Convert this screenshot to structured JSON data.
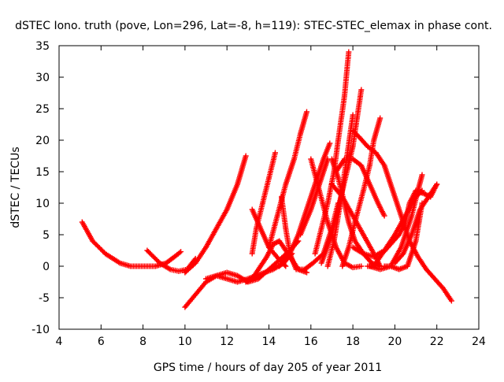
{
  "chart_data": {
    "type": "scatter",
    "title": "dSTEC Iono. truth (pove, Lon=296, Lat=-8, h=119): STEC-STEC_elemax in phase cont.",
    "xlabel": "GPS time / hours of day 205 of year 2011",
    "ylabel": "dSTEC  / TECUs",
    "xlim": [
      4,
      24
    ],
    "ylim": [
      -10,
      35
    ],
    "xticks": [
      4,
      6,
      8,
      10,
      12,
      14,
      16,
      18,
      20,
      22,
      24
    ],
    "yticks": [
      -10,
      -5,
      0,
      5,
      10,
      15,
      20,
      25,
      30,
      35
    ],
    "grid": false,
    "legend": "none",
    "marker": "+",
    "series_color": "#ff0000",
    "series": [
      {
        "x": [
          5.1,
          5.6,
          6.2,
          6.9,
          7.4,
          8.0,
          8.6,
          9.1,
          9.5,
          9.8
        ],
        "y": [
          7,
          4,
          2,
          0.5,
          0,
          0,
          0,
          0.5,
          1.5,
          2.3
        ]
      },
      {
        "x": [
          8.2,
          8.8,
          9.3,
          9.7,
          10.1,
          10.5
        ],
        "y": [
          2.5,
          0.5,
          -0.5,
          -0.8,
          -0.5,
          1.2
        ]
      },
      {
        "x": [
          10.0,
          10.5,
          11.0,
          11.5,
          12.0,
          12.5,
          13.0,
          13.4,
          13.8,
          14.2,
          14.7,
          15.1
        ],
        "y": [
          -6.5,
          -4.5,
          -2.5,
          -1.5,
          -2,
          -2.5,
          -2,
          -1.5,
          -1,
          -0.5,
          0.5,
          2
        ]
      },
      {
        "x": [
          11.0,
          11.5,
          12.0,
          12.5,
          13.0,
          13.5,
          14.0,
          14.5,
          15.0,
          15.4
        ],
        "y": [
          -2,
          -1.5,
          -1,
          -1.5,
          -2.5,
          -2,
          -0.5,
          1,
          2.5,
          4
        ]
      },
      {
        "x": [
          10.0,
          10.5,
          11.0,
          11.5,
          12.0,
          12.5,
          12.9
        ],
        "y": [
          -1,
          0.5,
          3,
          6,
          9,
          13,
          17.5
        ]
      },
      {
        "x": [
          12.9,
          13.2,
          13.6,
          13.9,
          14.2,
          14.5,
          14.9,
          15.4,
          15.8
        ],
        "y": [
          -2.5,
          -2,
          0,
          1.5,
          3.5,
          4,
          2,
          -0.5,
          -1
        ]
      },
      {
        "x": [
          13.2,
          13.4,
          13.7,
          14.0,
          14.3
        ],
        "y": [
          2,
          6,
          10,
          14,
          18
        ]
      },
      {
        "x": [
          13.2,
          13.6,
          14.0,
          14.5,
          14.8
        ],
        "y": [
          9,
          6,
          3,
          1,
          0
        ]
      },
      {
        "x": [
          14.0,
          14.4,
          14.8,
          15.2,
          15.5,
          15.8
        ],
        "y": [
          3,
          8,
          13,
          17,
          21,
          24.5
        ]
      },
      {
        "x": [
          14.5,
          15.0,
          15.4,
          15.8,
          16.2,
          16.6,
          16.9
        ],
        "y": [
          0,
          2,
          5,
          9,
          13,
          17,
          19.5
        ]
      },
      {
        "x": [
          15.5,
          16.0,
          16.4,
          16.8
        ],
        "y": [
          5,
          9,
          13,
          17
        ]
      },
      {
        "x": [
          14.6,
          14.8,
          15.0,
          15.3,
          15.7,
          16.1,
          16.6,
          17.0,
          17.3
        ],
        "y": [
          11,
          6,
          2,
          -0.5,
          -0.5,
          0.5,
          2,
          6,
          10
        ]
      },
      {
        "x": [
          16.2,
          16.5,
          16.8,
          17.1,
          17.3,
          17.6,
          17.8
        ],
        "y": [
          2,
          6,
          10,
          15,
          20,
          27,
          34
        ]
      },
      {
        "x": [
          16.5,
          17.0,
          17.5,
          18.0,
          18.4
        ],
        "y": [
          0.5,
          5,
          12,
          19,
          28
        ]
      },
      {
        "x": [
          16.0,
          16.4,
          16.8,
          17.2,
          17.6,
          18.0,
          18.4
        ],
        "y": [
          17,
          12,
          7,
          3,
          0.5,
          -0.2,
          0
        ]
      },
      {
        "x": [
          16.8,
          17.1,
          17.4,
          17.7,
          18.0
        ],
        "y": [
          0,
          4,
          10,
          17,
          24
        ]
      },
      {
        "x": [
          17.0,
          17.3,
          17.6,
          17.8,
          18.1,
          18.5,
          18.9,
          19.3
        ],
        "y": [
          17,
          14,
          10,
          7,
          4,
          2,
          0.5,
          0
        ]
      },
      {
        "x": [
          17.0,
          17.5,
          18.0,
          18.5,
          19.0,
          19.3
        ],
        "y": [
          13,
          11,
          8,
          5,
          2,
          0
        ]
      },
      {
        "x": [
          17.2,
          17.6,
          18.0,
          18.4,
          18.8,
          19.2,
          19.5
        ],
        "y": [
          15,
          17,
          17,
          16,
          13,
          10,
          8
        ]
      },
      {
        "x": [
          17.5,
          17.8,
          18.1,
          18.5,
          18.8,
          19.0,
          19.3
        ],
        "y": [
          0,
          3,
          7,
          12,
          16,
          20,
          23.5
        ]
      },
      {
        "x": [
          18.0,
          18.3,
          18.7,
          19.1,
          19.5,
          19.9,
          20.3,
          20.7,
          21.1,
          21.5,
          21.9,
          22.3,
          22.7
        ],
        "y": [
          21.5,
          20.5,
          19,
          18,
          16,
          12,
          8,
          4,
          1.5,
          -0.5,
          -2,
          -3.5,
          -5.5
        ]
      },
      {
        "x": [
          18.8,
          19.3,
          19.8,
          20.3,
          20.8,
          21.1,
          21.3
        ],
        "y": [
          0,
          -0.5,
          0,
          3,
          8,
          12,
          14.5
        ]
      },
      {
        "x": [
          18.7,
          19.0,
          19.4,
          19.8,
          20.2,
          20.5,
          20.7,
          21.0,
          21.4,
          21.7,
          22.0
        ],
        "y": [
          0,
          0,
          2,
          3.5,
          5,
          7,
          10,
          12,
          11.5,
          11,
          13
        ]
      },
      {
        "x": [
          19.5,
          19.8,
          20.2,
          20.6,
          21.0,
          21.3
        ],
        "y": [
          0,
          0,
          -0.5,
          0,
          4,
          10
        ]
      },
      {
        "x": [
          20.0,
          20.4,
          20.8,
          21.2,
          21.6,
          22.0
        ],
        "y": [
          0.5,
          2,
          5,
          9,
          11,
          13
        ]
      },
      {
        "x": [
          18.0,
          18.5,
          19.0,
          19.5,
          20.0,
          20.5,
          21.0,
          21.3
        ],
        "y": [
          3,
          2,
          1.5,
          2.5,
          5,
          8,
          11,
          12
        ]
      }
    ]
  }
}
